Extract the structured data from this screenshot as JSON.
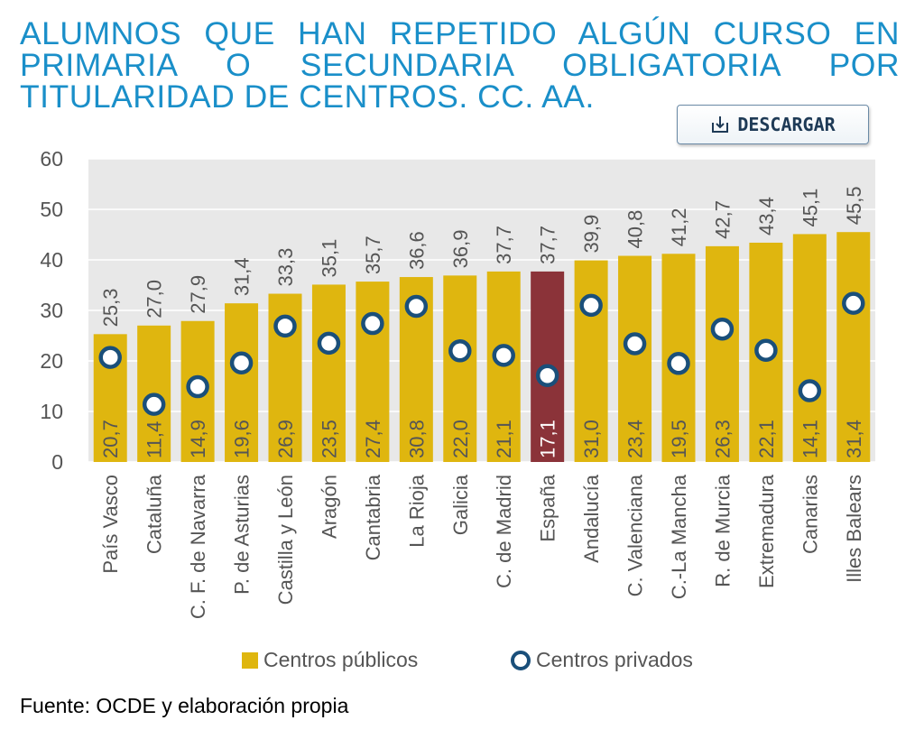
{
  "title": "ALUMNOS QUE HAN REPETIDO ALGÚN CURSO EN PRIMARIA O SECUNDARIA OBLIGATORIA POR TITULARIDAD DE CENTROS. CC. AA.",
  "download_label": "DESCARGAR",
  "source": "Fuente: OCDE y elaboración propia",
  "icons": {
    "download": "download-icon"
  },
  "colors": {
    "title": "#1a8fc9",
    "public_bar": "#dfb60f",
    "highlight_bar": "#8b3339",
    "private_marker": "#1a4f7a",
    "plot_background": "#e8e8e8"
  },
  "chart_data": {
    "type": "bar",
    "categories": [
      "País Vasco",
      "Cataluña",
      "C. F. de Navarra",
      "P. de Asturias",
      "Castilla y León",
      "Aragón",
      "Cantabria",
      "La Rioja",
      "Galicia",
      "C. de Madrid",
      "España",
      "Andalucía",
      "C. Valenciana",
      "C.-La Mancha",
      "R. de Murcia",
      "Extremadura",
      "Canarias",
      "Illes Balears"
    ],
    "highlight_category": "España",
    "series": [
      {
        "name": "Centros públicos",
        "kind": "bar",
        "values": [
          25.3,
          27.0,
          27.9,
          31.4,
          33.3,
          35.1,
          35.7,
          36.6,
          36.9,
          37.7,
          37.7,
          39.9,
          40.8,
          41.2,
          42.7,
          43.4,
          45.1,
          45.5
        ],
        "labels": [
          "25,3",
          "27,0",
          "27,9",
          "31,4",
          "33,3",
          "35,1",
          "35,7",
          "36,6",
          "36,9",
          "37,7",
          "37,7",
          "39,9",
          "40,8",
          "41,2",
          "42,7",
          "43,4",
          "45,1",
          "45,5"
        ]
      },
      {
        "name": "Centros privados",
        "kind": "marker",
        "values": [
          20.7,
          11.4,
          14.9,
          19.6,
          26.9,
          23.5,
          27.4,
          30.8,
          22.0,
          21.1,
          17.1,
          31.0,
          23.4,
          19.5,
          26.3,
          22.1,
          14.1,
          31.4
        ],
        "labels": [
          "20,7",
          "11,4",
          "14,9",
          "19,6",
          "26,9",
          "23,5",
          "27,4",
          "30,8",
          "22,0",
          "21,1",
          "17,1",
          "31,0",
          "23,4",
          "19,5",
          "26,3",
          "22,1",
          "14,1",
          "31,4"
        ]
      }
    ],
    "ylim": [
      0,
      60
    ],
    "yticks": [
      "0",
      "10",
      "20",
      "30",
      "40",
      "50",
      "60"
    ],
    "grid": true,
    "legend_position": "bottom"
  }
}
